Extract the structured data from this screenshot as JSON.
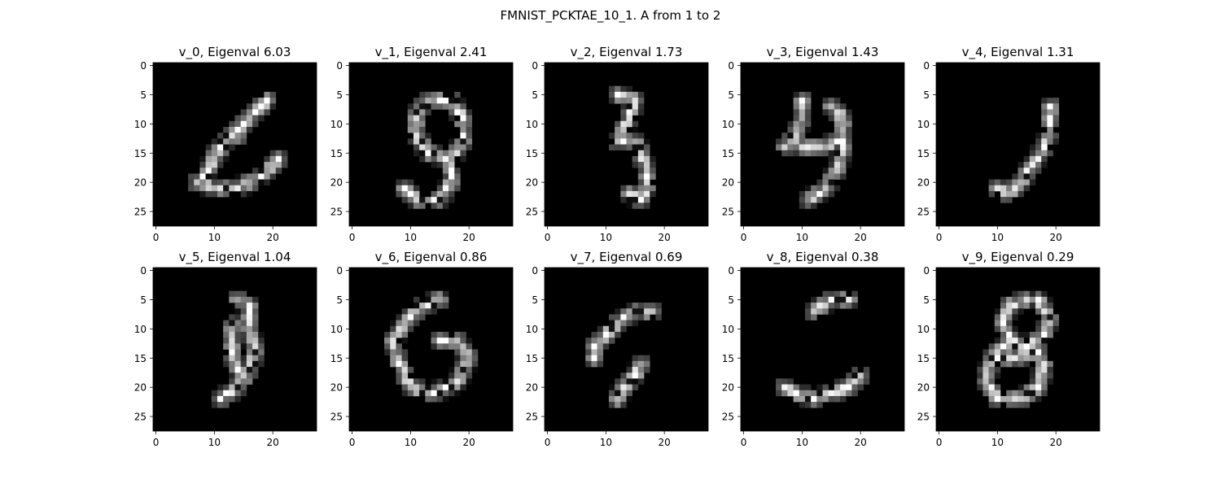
{
  "figure_title": "FMNIST_PCKTAE_10_1. A from 1 to 2",
  "colors": {
    "background": "#ffffff",
    "image_bg": "#000000",
    "axis": "#000000"
  },
  "chart_data": {
    "type": "heatmap",
    "colormap": "gray",
    "image_size": 28,
    "layout": "2 rows x 5 columns",
    "x_ticks": [
      0,
      10,
      20
    ],
    "y_ticks": [
      0,
      5,
      10,
      15,
      20,
      25
    ],
    "xlim": [
      -0.5,
      27.5
    ],
    "ylim": [
      27.5,
      -0.5
    ],
    "panels": [
      {
        "title": "v_0, Eigenval 6.03",
        "strokes": [
          [
            [
              7,
              20
            ],
            [
              10,
              21
            ],
            [
              14,
              21
            ],
            [
              18,
              19
            ],
            [
              21,
              16
            ]
          ],
          [
            [
              8,
              19
            ],
            [
              10,
              16
            ],
            [
              12,
              13
            ],
            [
              15,
              10
            ],
            [
              17,
              8
            ],
            [
              19,
              6
            ]
          ],
          [
            [
              10,
              15
            ],
            [
              12,
              13
            ],
            [
              14,
              12
            ]
          ]
        ]
      },
      {
        "title": "v_1, Eigenval 2.41",
        "strokes": [
          [
            [
              11,
              8
            ],
            [
              13,
              6
            ],
            [
              17,
              6
            ],
            [
              19,
              9
            ],
            [
              19,
              13
            ],
            [
              17,
              16
            ],
            [
              13,
              15
            ],
            [
              11,
              12
            ],
            [
              11,
              8
            ]
          ],
          [
            [
              17,
              16
            ],
            [
              17,
              20
            ],
            [
              15,
              23
            ],
            [
              11,
              23
            ],
            [
              9,
              21
            ]
          ]
        ]
      },
      {
        "title": "v_2, Eigenval 1.73",
        "strokes": [
          [
            [
              12,
              5
            ],
            [
              15,
              6
            ],
            [
              14,
              9
            ],
            [
              13,
              11
            ],
            [
              12,
              13
            ],
            [
              15,
              13
            ]
          ],
          [
            [
              15,
              13
            ],
            [
              16,
              15
            ],
            [
              17,
              18
            ],
            [
              17,
              21
            ],
            [
              16,
              23
            ],
            [
              14,
              22
            ]
          ]
        ]
      },
      {
        "title": "v_3, Eigenval 1.43",
        "strokes": [
          [
            [
              10,
              6
            ],
            [
              10,
              9
            ],
            [
              9,
              12
            ],
            [
              7,
              14
            ]
          ],
          [
            [
              15,
              7
            ],
            [
              17,
              9
            ],
            [
              17,
              14
            ],
            [
              16,
              18
            ],
            [
              14,
              21
            ],
            [
              11,
              23
            ]
          ],
          [
            [
              10,
              14
            ],
            [
              13,
              14
            ],
            [
              16,
              13
            ]
          ]
        ]
      },
      {
        "title": "v_4, Eigenval 1.31",
        "strokes": [
          [
            [
              19,
              7
            ],
            [
              19,
              11
            ],
            [
              18,
              14
            ],
            [
              16,
              17
            ],
            [
              14,
              20
            ],
            [
              12,
              22
            ],
            [
              10,
              21
            ]
          ]
        ]
      },
      {
        "title": "v_5, Eigenval 1.04",
        "strokes": [
          [
            [
              14,
              5
            ],
            [
              16,
              6
            ],
            [
              16,
              10
            ],
            [
              17,
              14
            ],
            [
              16,
              17
            ],
            [
              14,
              20
            ],
            [
              11,
              22
            ]
          ],
          [
            [
              13,
              9
            ],
            [
              13,
              14
            ],
            [
              14,
              17
            ]
          ]
        ]
      },
      {
        "title": "v_6, Eigenval 0.86",
        "strokes": [
          [
            [
              15,
              5
            ],
            [
              12,
              6
            ],
            [
              9,
              9
            ],
            [
              7,
              12
            ],
            [
              8,
              16
            ],
            [
              10,
              20
            ],
            [
              14,
              21
            ],
            [
              18,
              19
            ],
            [
              20,
              15
            ],
            [
              18,
              12
            ],
            [
              15,
              12
            ]
          ]
        ]
      },
      {
        "title": "v_7, Eigenval 0.69",
        "strokes": [
          [
            [
              18,
              7
            ],
            [
              15,
              7
            ],
            [
              12,
              9
            ],
            [
              10,
              11
            ],
            [
              8,
              13
            ],
            [
              8,
              15
            ]
          ],
          [
            [
              16,
              16
            ],
            [
              15,
              18
            ],
            [
              13,
              20
            ],
            [
              12,
              22
            ]
          ]
        ]
      },
      {
        "title": "v_8, Eigenval 0.38",
        "strokes": [
          [
            [
              18,
              5
            ],
            [
              15,
              5
            ],
            [
              12,
              7
            ]
          ],
          [
            [
              20,
              18
            ],
            [
              18,
              20
            ],
            [
              15,
              21
            ],
            [
              12,
              22
            ],
            [
              9,
              21
            ],
            [
              7,
              20
            ]
          ]
        ]
      },
      {
        "title": "v_9, Eigenval 0.29",
        "strokes": [
          [
            [
              15,
              5
            ],
            [
              12,
              6
            ],
            [
              11,
              9
            ],
            [
              12,
              12
            ],
            [
              15,
              13
            ],
            [
              18,
              11
            ],
            [
              19,
              8
            ],
            [
              17,
              5
            ]
          ],
          [
            [
              12,
              12
            ],
            [
              9,
              15
            ],
            [
              8,
              19
            ],
            [
              10,
              22
            ],
            [
              14,
              22
            ],
            [
              17,
              20
            ],
            [
              18,
              16
            ],
            [
              15,
              13
            ]
          ],
          [
            [
              9,
              15
            ],
            [
              13,
              15
            ],
            [
              17,
              14
            ]
          ]
        ]
      }
    ]
  }
}
